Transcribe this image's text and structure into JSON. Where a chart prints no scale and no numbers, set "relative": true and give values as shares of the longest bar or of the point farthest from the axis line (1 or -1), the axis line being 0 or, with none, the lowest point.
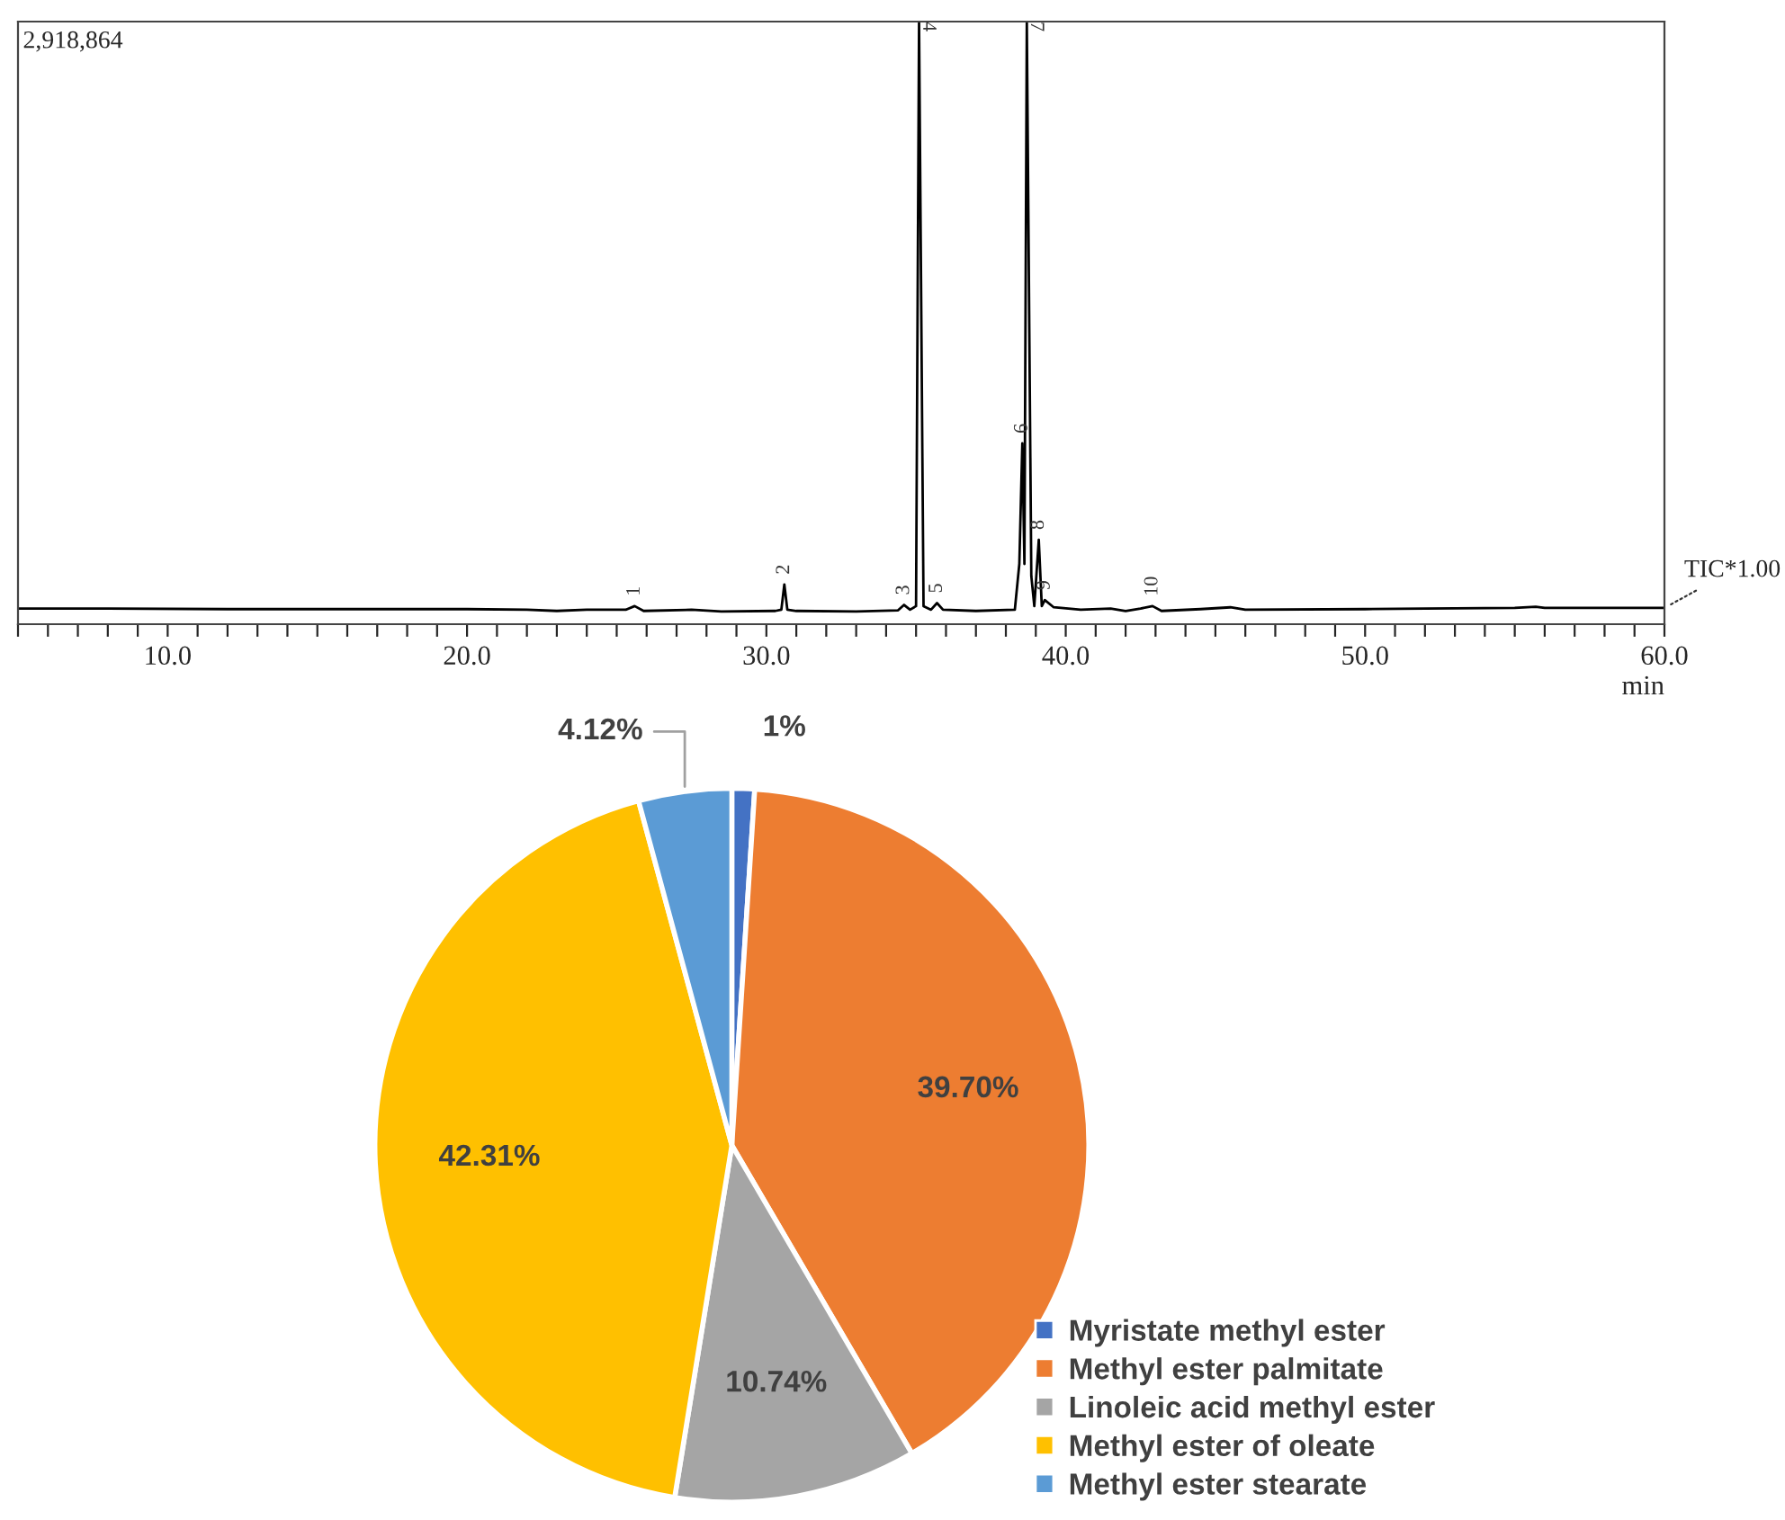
{
  "chart_data": [
    {
      "type": "line",
      "relative": true,
      "xlabel": "min",
      "xlim": [
        5,
        60
      ],
      "xticks": [
        {
          "value": 5,
          "label": null
        },
        {
          "value": 6,
          "label": null
        },
        {
          "value": 7,
          "label": null
        },
        {
          "value": 8,
          "label": null
        },
        {
          "value": 9,
          "label": null
        },
        {
          "value": 10,
          "label": "10.0"
        },
        {
          "value": 11,
          "label": null
        },
        {
          "value": 12,
          "label": null
        },
        {
          "value": 13,
          "label": null
        },
        {
          "value": 14,
          "label": null
        },
        {
          "value": 15,
          "label": null
        },
        {
          "value": 16,
          "label": null
        },
        {
          "value": 17,
          "label": null
        },
        {
          "value": 18,
          "label": null
        },
        {
          "value": 19,
          "label": null
        },
        {
          "value": 20,
          "label": "20.0"
        },
        {
          "value": 21,
          "label": null
        },
        {
          "value": 22,
          "label": null
        },
        {
          "value": 23,
          "label": null
        },
        {
          "value": 24,
          "label": null
        },
        {
          "value": 25,
          "label": null
        },
        {
          "value": 26,
          "label": null
        },
        {
          "value": 27,
          "label": null
        },
        {
          "value": 28,
          "label": null
        },
        {
          "value": 29,
          "label": null
        },
        {
          "value": 30,
          "label": "30.0"
        },
        {
          "value": 31,
          "label": null
        },
        {
          "value": 32,
          "label": null
        },
        {
          "value": 33,
          "label": null
        },
        {
          "value": 34,
          "label": null
        },
        {
          "value": 35,
          "label": null
        },
        {
          "value": 36,
          "label": null
        },
        {
          "value": 37,
          "label": null
        },
        {
          "value": 38,
          "label": null
        },
        {
          "value": 39,
          "label": null
        },
        {
          "value": 40,
          "label": "40.0"
        },
        {
          "value": 41,
          "label": null
        },
        {
          "value": 42,
          "label": null
        },
        {
          "value": 43,
          "label": null
        },
        {
          "value": 44,
          "label": null
        },
        {
          "value": 45,
          "label": null
        },
        {
          "value": 46,
          "label": null
        },
        {
          "value": 47,
          "label": null
        },
        {
          "value": 48,
          "label": null
        },
        {
          "value": 49,
          "label": null
        },
        {
          "value": 50,
          "label": "50.0"
        },
        {
          "value": 51,
          "label": null
        },
        {
          "value": 52,
          "label": null
        },
        {
          "value": 53,
          "label": null
        },
        {
          "value": 54,
          "label": null
        },
        {
          "value": 55,
          "label": null
        },
        {
          "value": 56,
          "label": null
        },
        {
          "value": 57,
          "label": null
        },
        {
          "value": 58,
          "label": null
        },
        {
          "value": 59,
          "label": null
        },
        {
          "value": 60,
          "label": "60.0"
        }
      ],
      "tick_labels": "x",
      "grid": false,
      "legend": false,
      "series": [
        {
          "color": "#000000",
          "x": [
            5,
            8,
            12,
            16,
            20,
            22,
            23,
            24,
            25.3,
            25.6,
            25.9,
            27.5,
            28.5,
            30.3,
            30.5,
            30.6,
            30.7,
            31,
            33,
            34.4,
            34.6,
            34.8,
            35.0,
            35.1,
            35.25,
            35.5,
            35.7,
            35.9,
            37,
            38.3,
            38.45,
            38.55,
            38.62,
            38.7,
            38.85,
            38.95,
            39.1,
            39.2,
            39.3,
            39.6,
            40.5,
            41.5,
            42,
            42.5,
            42.9,
            43.2,
            44.5,
            45.5,
            46,
            50,
            52,
            55,
            55.7,
            56,
            60
          ],
          "values": [
            0.026,
            0.026,
            0.025,
            0.025,
            0.025,
            0.024,
            0.022,
            0.024,
            0.024,
            0.03,
            0.022,
            0.024,
            0.021,
            0.022,
            0.024,
            0.066,
            0.024,
            0.022,
            0.021,
            0.023,
            0.032,
            0.024,
            0.03,
            1,
            0.03,
            0.024,
            0.035,
            0.024,
            0.022,
            0.024,
            0.1,
            0.3,
            0.1,
            1,
            0.08,
            0.03,
            0.14,
            0.03,
            0.04,
            0.028,
            0.024,
            0.026,
            0.022,
            0.026,
            0.03,
            0.022,
            0.025,
            0.028,
            0.024,
            0.025,
            0.026,
            0.027,
            0.029,
            0.027,
            0.027
          ]
        }
      ],
      "annotations": [
        "2,918,864",
        "TIC*1.00",
        {
          "text": "1",
          "x": 25.6,
          "y": 0.03
        },
        {
          "text": "2",
          "x": 30.6,
          "y": 0.066
        },
        {
          "text": "3",
          "x": 34.6,
          "y": 0.032
        },
        {
          "text": "4",
          "x": 35.1,
          "y": 1
        },
        {
          "text": "5",
          "x": 35.7,
          "y": 0.035
        },
        {
          "text": "6",
          "x": 38.55,
          "y": 0.3
        },
        {
          "text": "7",
          "x": 38.7,
          "y": 1
        },
        {
          "text": "8",
          "x": 39.1,
          "y": 0.14
        },
        {
          "text": "9",
          "x": 39.3,
          "y": 0.04
        },
        {
          "text": "10",
          "x": 42.9,
          "y": 0.03
        }
      ]
    },
    {
      "type": "pie",
      "legend": "bottom right",
      "categories": [
        "Myristate methyl ester",
        "Methyl ester palmitate",
        "Linoleic acid methyl ester",
        "Methyl ester of oleate",
        "Methyl ester stearate"
      ],
      "values": [
        1,
        39.7,
        10.74,
        42.31,
        4.12
      ],
      "colors": [
        "#4472c4",
        "#ed7d31",
        "#a5a5a5",
        "#ffc000",
        "#5b9bd5"
      ],
      "value_labels": [
        "1%",
        "39.70%",
        "10.74%",
        "42.31%",
        "4.12%"
      ]
    }
  ]
}
